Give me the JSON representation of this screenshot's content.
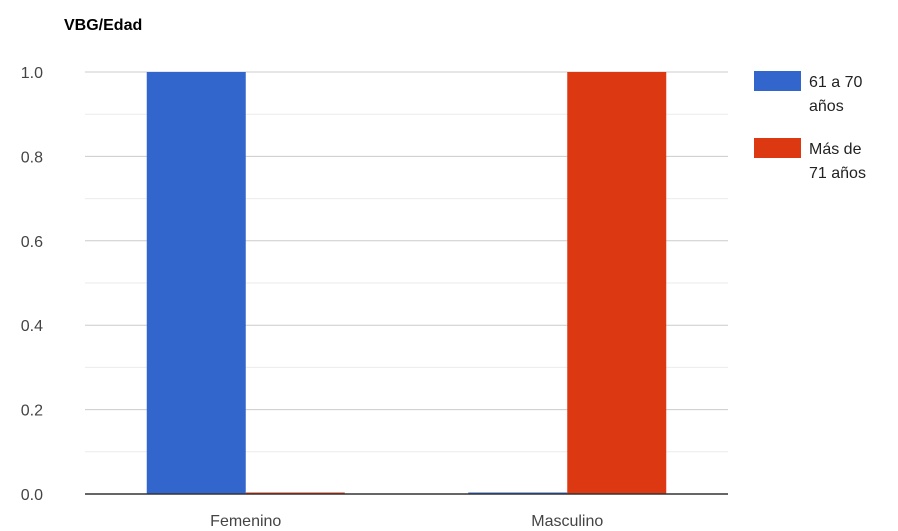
{
  "chart_data": {
    "type": "bar",
    "title": "VBG/Edad",
    "xlabel": "",
    "ylabel": "",
    "categories": [
      "Femenino",
      "Masculino"
    ],
    "series": [
      {
        "name": "61 a 70 años",
        "legend_lines": [
          "61 a 70",
          "años"
        ],
        "color": "#3366cc",
        "values": [
          1.0,
          0.0
        ]
      },
      {
        "name": "Más de 71 años",
        "legend_lines": [
          "Más de",
          "71 años"
        ],
        "color": "#dc3912",
        "values": [
          0.0,
          1.0
        ]
      }
    ],
    "yticks": [
      "0.0",
      "0.2",
      "0.4",
      "0.6",
      "0.8",
      "1.0"
    ],
    "ylim": [
      0,
      1.0
    ],
    "grid": true,
    "legend_position": "right"
  }
}
